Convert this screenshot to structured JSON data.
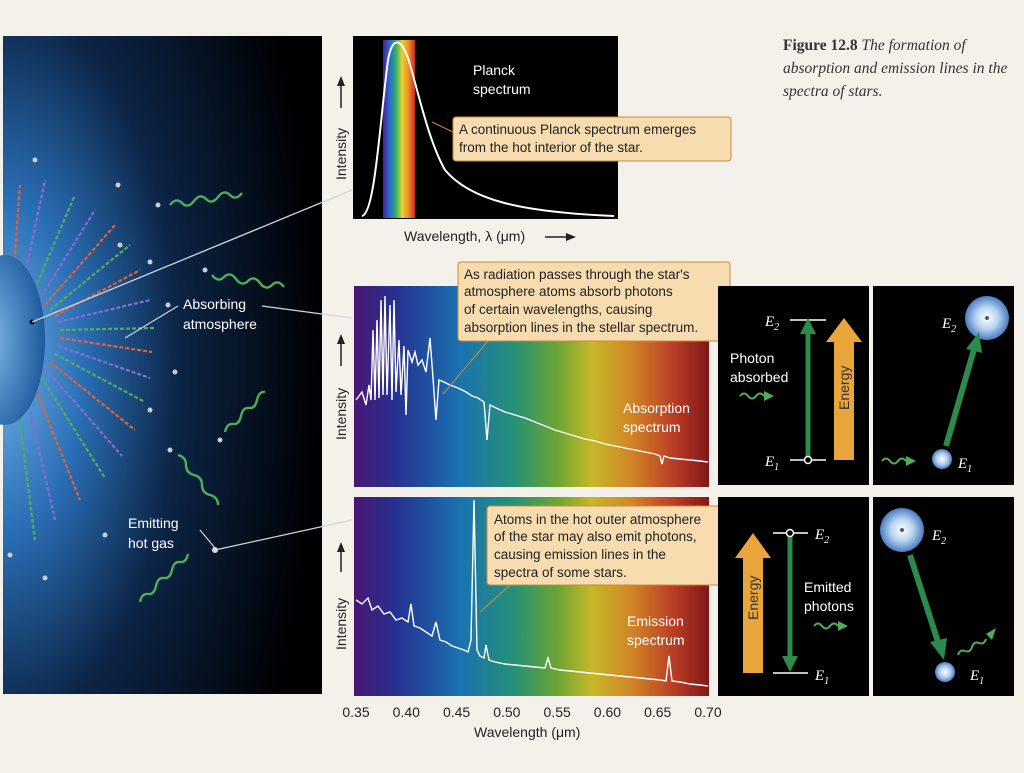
{
  "caption": {
    "figure_number": "Figure 12.8",
    "text": "The formation of absorption and emission lines in the spectra of stars."
  },
  "star": {
    "absorbing_label_1": "Absorbing",
    "absorbing_label_2": "atmosphere",
    "emitting_label_1": "Emitting",
    "emitting_label_2": "hot gas"
  },
  "planck_panel": {
    "title_1": "Planck",
    "title_2": "spectrum",
    "note_1": "A continuous Planck spectrum emerges",
    "note_2": "from the hot interior of the star.",
    "ylabel": "Intensity",
    "xlabel": "Wavelength, λ (μm)"
  },
  "absorption_panel": {
    "label_1": "Absorption",
    "label_2": "spectrum",
    "note_1": "As radiation passes through the star's",
    "note_2": "atmosphere atoms absorb photons",
    "note_3": "of certain wavelengths, causing",
    "note_4": "absorption lines in the stellar spectrum.",
    "ylabel": "Intensity"
  },
  "emission_panel": {
    "label_1": "Emission",
    "label_2": "spectrum",
    "note_1": "Atoms in the hot outer atmosphere",
    "note_2": "of the star may also emit photons,",
    "note_3": "causing emission lines in the",
    "note_4": "spectra of some stars.",
    "ylabel": "Intensity"
  },
  "bottom_axis": {
    "ticks": [
      "0.35",
      "0.40",
      "0.45",
      "0.50",
      "0.55",
      "0.60",
      "0.65",
      "0.70"
    ],
    "xlabel": "Wavelength (μm)"
  },
  "energy_absorb": {
    "e_upper": "E",
    "e_upper_sub": "2",
    "e_lower": "E",
    "e_lower_sub": "1",
    "photon_1": "Photon",
    "photon_2": "absorbed",
    "energy": "Energy"
  },
  "energy_emit": {
    "e_upper": "E",
    "e_upper_sub": "2",
    "e_lower": "E",
    "e_lower_sub": "1",
    "emitted_1": "Emitted",
    "emitted_2": "photons",
    "energy": "Energy"
  },
  "atom_absorb": {
    "e_upper": "E",
    "e_upper_sub": "2",
    "e_lower": "E",
    "e_lower_sub": "1"
  },
  "atom_emit": {
    "e_upper": "E",
    "e_upper_sub": "2",
    "e_lower": "E",
    "e_lower_sub": "1"
  },
  "colors": {
    "note_fill": "#f6dcae",
    "note_stroke": "#c98a3c",
    "energy_arrow": "#e9a53a",
    "transition_arrow": "#2c8a4a"
  }
}
